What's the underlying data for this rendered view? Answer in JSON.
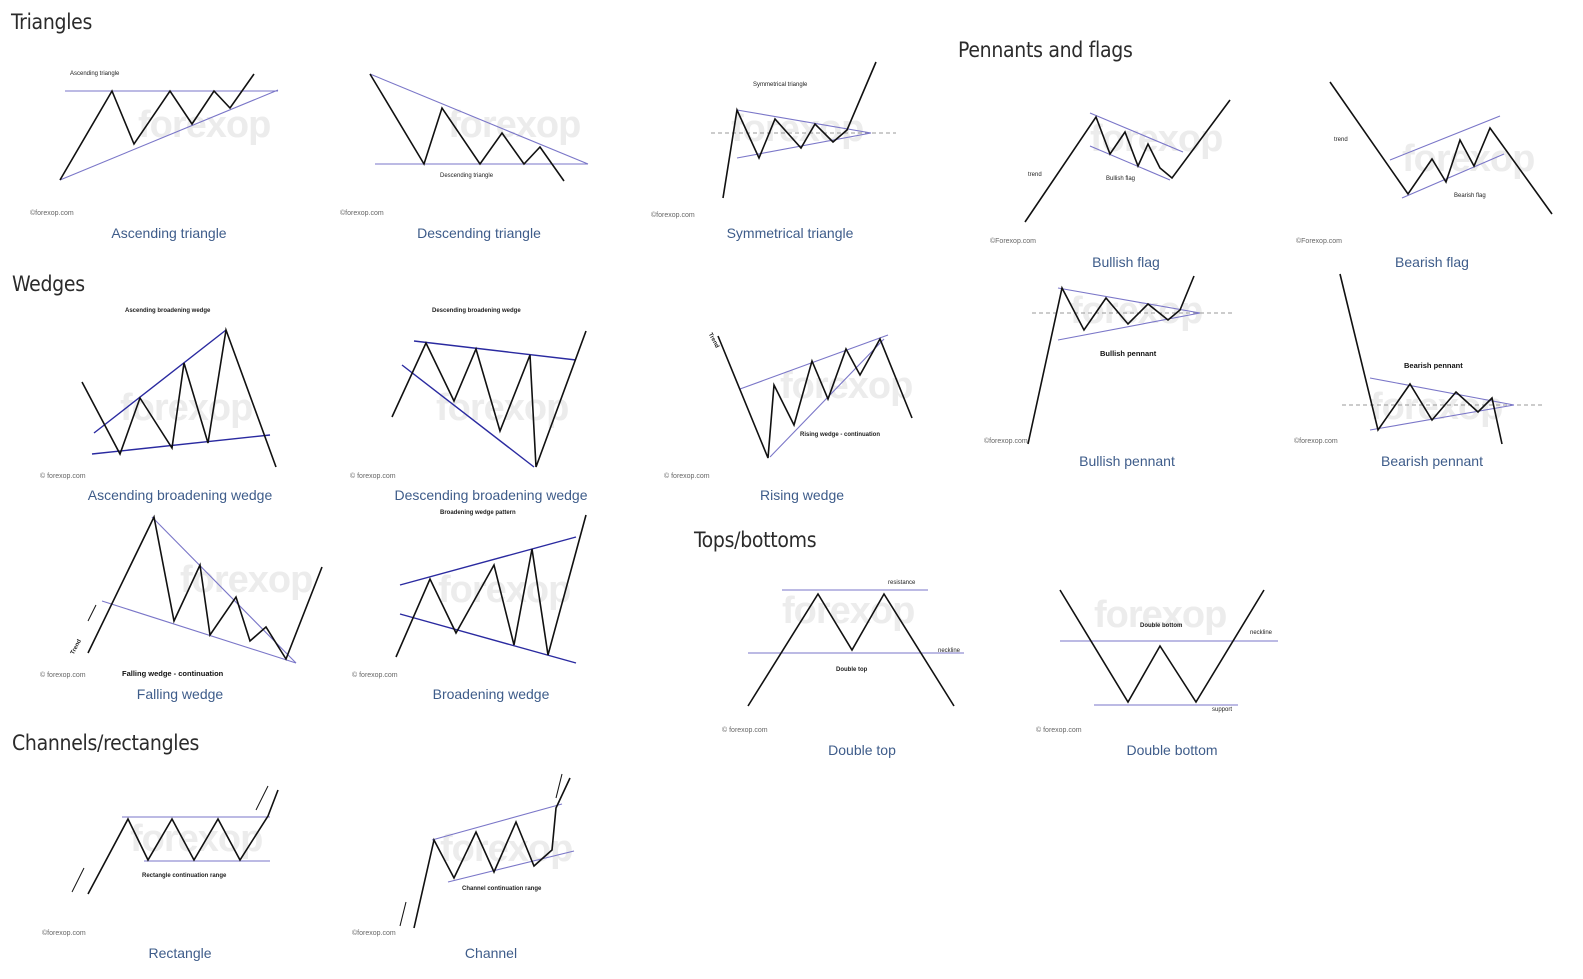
{
  "sections": {
    "triangles": "Triangles",
    "pennants": "Pennants and flags",
    "wedges": "Wedges",
    "tops": "Tops/bottoms",
    "channels": "Channels/rectangles"
  },
  "watermark": "forexop",
  "credits": {
    "lower": "© forexop.com",
    "lower_plain": "©forexop.com",
    "upper": "©Forexop.com"
  },
  "patterns": {
    "ascending_triangle": {
      "caption": "Ascending triangle",
      "label": "Ascending triangle"
    },
    "descending_triangle": {
      "caption": "Descending triangle",
      "label": "Descending triangle"
    },
    "symmetrical_triangle": {
      "caption": "Symmetrical triangle",
      "label": "Symmetrical triangle"
    },
    "bullish_flag": {
      "caption": "Bullish flag",
      "label": "Bullish flag",
      "trend": "trend"
    },
    "bearish_flag": {
      "caption": "Bearish flag",
      "label": "Bearish flag",
      "trend": "trend"
    },
    "ascending_broadening_wedge": {
      "caption": "Ascending broadening wedge",
      "label": "Ascending broadening wedge"
    },
    "descending_broadening_wedge": {
      "caption": "Descending broadening wedge",
      "label": "Descending broadening wedge"
    },
    "rising_wedge": {
      "caption": "Rising wedge",
      "label": "Rising wedge - continuation",
      "trend": "Trend"
    },
    "bullish_pennant": {
      "caption": "Bullish pennant",
      "label": "Bullish pennant"
    },
    "bearish_pennant": {
      "caption": "Bearish pennant",
      "label": "Bearish pennant"
    },
    "falling_wedge": {
      "caption": "Falling wedge",
      "label": "Falling wedge - continuation",
      "trend": "Trend"
    },
    "broadening_wedge": {
      "caption": "Broadening wedge",
      "label": "Broadening wedge pattern"
    },
    "double_top": {
      "caption": "Double top",
      "label": "Double top",
      "resistance": "resistance",
      "neckline": "neckline"
    },
    "double_bottom": {
      "caption": "Double bottom",
      "label": "Double bottom",
      "neckline": "neckline",
      "support": "support"
    },
    "rectangle": {
      "caption": "Rectangle",
      "label": "Rectangle continuation range"
    },
    "channel": {
      "caption": "Channel",
      "label": "Channel continuation range"
    }
  },
  "colors": {
    "caption": "#3e5c8a",
    "outline_line": "#7a76c8",
    "dark_line": "#2a2aa0",
    "price_line": "#111111"
  }
}
